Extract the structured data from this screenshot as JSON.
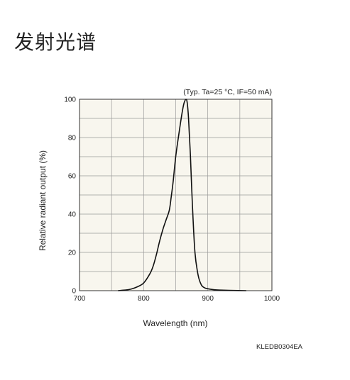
{
  "page": {
    "title": "发射光谱"
  },
  "chart_data": {
    "type": "line",
    "title": "",
    "condition_note": "(Typ. Ta=25 °C, IF=50 mA)",
    "xlabel": "Wavelength (nm)",
    "ylabel": "Relative radiant output (%)",
    "xlim": [
      700,
      1000
    ],
    "ylim": [
      0,
      100
    ],
    "x_ticks": [
      700,
      800,
      900,
      1000
    ],
    "y_ticks": [
      0,
      20,
      40,
      60,
      80,
      100
    ],
    "grid": true,
    "grid_x_step": 50,
    "grid_y_step": 10,
    "plot_background": "#f8f6ee",
    "line_color": "#111111",
    "series": [
      {
        "x": [
          760,
          770,
          780,
          790,
          800,
          810,
          815,
          820,
          825,
          830,
          835,
          840,
          843,
          846,
          850,
          855,
          860,
          863,
          866,
          868,
          870,
          873,
          876,
          880,
          885,
          890,
          895,
          900,
          910,
          920,
          940,
          960
        ],
        "y": [
          0,
          0.3,
          0.8,
          2,
          4,
          9,
          13,
          19,
          26,
          32,
          37,
          42,
          49,
          57,
          70,
          82,
          93,
          98,
          100,
          98,
          90,
          70,
          45,
          20,
          8,
          3,
          1.5,
          1,
          0.5,
          0.3,
          0.1,
          0
        ]
      }
    ]
  },
  "figure_code": "KLEDB0304EA"
}
